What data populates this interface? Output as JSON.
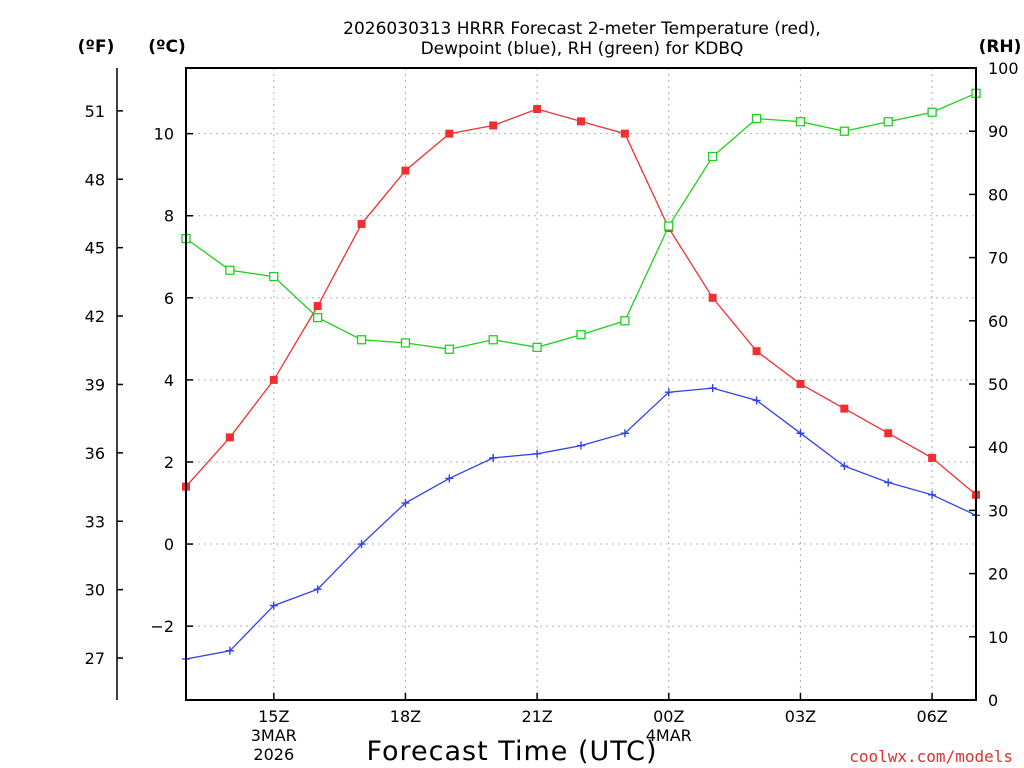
{
  "chart_data": {
    "type": "line",
    "title": "2026030313 HRRR Forecast 2-meter Temperature (red),",
    "subtitle": "Dewpoint (blue), RH (green) for KDBQ",
    "xlabel": "Forecast Time (UTC)",
    "credit": "coolwx.com/models",
    "units": {
      "fahrenheit": "(ºF)",
      "celsius": "(ºC)",
      "rh": "(RH)"
    },
    "x_hours": [
      13,
      14,
      15,
      16,
      17,
      18,
      19,
      20,
      21,
      22,
      23,
      24,
      25,
      26,
      27,
      28,
      29,
      30,
      31
    ],
    "xlim": [
      13,
      31
    ],
    "x_ticks": [
      {
        "hour": 15,
        "label": "15Z",
        "sub1": "3MAR",
        "sub2": "2026"
      },
      {
        "hour": 18,
        "label": "18Z",
        "sub1": "",
        "sub2": ""
      },
      {
        "hour": 21,
        "label": "21Z",
        "sub1": "",
        "sub2": ""
      },
      {
        "hour": 24,
        "label": "00Z",
        "sub1": "4MAR",
        "sub2": ""
      },
      {
        "hour": 27,
        "label": "03Z",
        "sub1": "",
        "sub2": ""
      },
      {
        "hour": 30,
        "label": "06Z",
        "sub1": "",
        "sub2": ""
      }
    ],
    "ylim_c": [
      -3.8,
      11.6
    ],
    "y_ticks_c": [
      "-2",
      "0",
      "2",
      "4",
      "6",
      "8",
      "10"
    ],
    "y_ticks_f": [
      "27",
      "30",
      "33",
      "36",
      "39",
      "42",
      "45",
      "48",
      "51"
    ],
    "ylim_rh": [
      0,
      100
    ],
    "y_ticks_rh": [
      "0",
      "10",
      "20",
      "30",
      "40",
      "50",
      "60",
      "70",
      "80",
      "90",
      "100"
    ],
    "grid": true,
    "series": [
      {
        "name": "Temperature",
        "axis": "c",
        "color": "#f03030",
        "marker": "filled-square",
        "values": [
          1.4,
          2.6,
          4.0,
          5.8,
          7.8,
          9.1,
          10.0,
          10.2,
          10.6,
          10.3,
          10.0,
          7.7,
          6.0,
          4.7,
          3.9,
          3.3,
          2.7,
          2.1,
          1.2
        ]
      },
      {
        "name": "Dewpoint",
        "axis": "c",
        "color": "#3040f0",
        "marker": "plus",
        "values": [
          -2.8,
          -2.6,
          -1.5,
          -1.1,
          0.0,
          1.0,
          1.6,
          2.1,
          2.2,
          2.4,
          2.7,
          3.7,
          3.8,
          3.5,
          2.7,
          1.9,
          1.5,
          1.2,
          0.7
        ]
      },
      {
        "name": "RH",
        "axis": "rh",
        "color": "#20d020",
        "marker": "open-square",
        "values": [
          73.0,
          68.0,
          67.0,
          60.5,
          57.0,
          56.5,
          55.5,
          57.0,
          55.8,
          57.8,
          60.0,
          75.0,
          86.0,
          92.0,
          91.5,
          90.0,
          91.5,
          93.0,
          96.0
        ]
      }
    ]
  }
}
